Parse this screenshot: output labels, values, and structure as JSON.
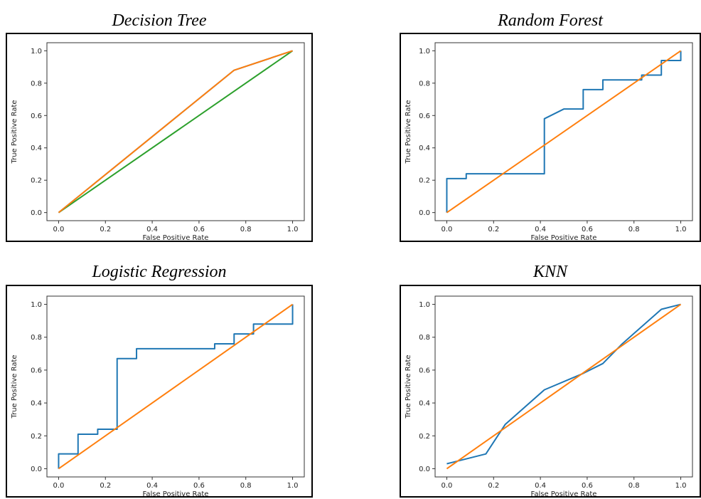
{
  "chart_data": [
    {
      "type": "line",
      "title": "Decision Tree",
      "xlabel": "False Positive Rate",
      "ylabel": "True Positive Rate",
      "xlim": [
        -0.05,
        1.05
      ],
      "ylim": [
        -0.05,
        1.05
      ],
      "xticks": [
        "0.0",
        "0.2",
        "0.4",
        "0.6",
        "0.8",
        "1.0"
      ],
      "yticks": [
        "0.0",
        "0.2",
        "0.4",
        "0.6",
        "0.8",
        "1.0"
      ],
      "grid": false,
      "series": [
        {
          "color": "#2ca02c",
          "x": [
            0,
            1
          ],
          "y": [
            0,
            1
          ]
        },
        {
          "color": "#1f77b4",
          "x": [
            0,
            0.75,
            1
          ],
          "y": [
            0,
            0.88,
            1
          ]
        },
        {
          "color": "#ff7f0e",
          "x": [
            0,
            0.75,
            1
          ],
          "y": [
            0,
            0.88,
            1
          ]
        }
      ]
    },
    {
      "type": "line",
      "title": "Random Forest",
      "xlabel": "False Positive Rate",
      "ylabel": "True Positive Rate",
      "xlim": [
        -0.05,
        1.05
      ],
      "ylim": [
        -0.05,
        1.05
      ],
      "xticks": [
        "0.0",
        "0.2",
        "0.4",
        "0.6",
        "0.8",
        "1.0"
      ],
      "yticks": [
        "0.0",
        "0.2",
        "0.4",
        "0.6",
        "0.8",
        "1.0"
      ],
      "grid": false,
      "series": [
        {
          "color": "#1f77b4",
          "x": [
            0,
            0,
            0.083,
            0.083,
            0.417,
            0.417,
            0.5,
            0.583,
            0.583,
            0.667,
            0.667,
            0.833,
            0.833,
            0.917,
            0.917,
            1,
            1
          ],
          "y": [
            0,
            0.21,
            0.21,
            0.24,
            0.24,
            0.58,
            0.64,
            0.64,
            0.76,
            0.76,
            0.82,
            0.82,
            0.85,
            0.85,
            0.94,
            0.94,
            1
          ]
        },
        {
          "color": "#ff7f0e",
          "x": [
            0,
            1
          ],
          "y": [
            0,
            1
          ]
        }
      ]
    },
    {
      "type": "line",
      "title": "Logistic Regression",
      "xlabel": "False Positive Rate",
      "ylabel": "True Positive Rate",
      "xlim": [
        -0.05,
        1.05
      ],
      "ylim": [
        -0.05,
        1.05
      ],
      "xticks": [
        "0.0",
        "0.2",
        "0.4",
        "0.6",
        "0.8",
        "1.0"
      ],
      "yticks": [
        "0.0",
        "0.2",
        "0.4",
        "0.6",
        "0.8",
        "1.0"
      ],
      "grid": false,
      "series": [
        {
          "color": "#1f77b4",
          "x": [
            0,
            0,
            0.083,
            0.083,
            0.167,
            0.167,
            0.25,
            0.25,
            0.333,
            0.333,
            0.667,
            0.667,
            0.75,
            0.75,
            0.833,
            0.833,
            1,
            1
          ],
          "y": [
            0,
            0.09,
            0.09,
            0.21,
            0.21,
            0.24,
            0.24,
            0.67,
            0.67,
            0.73,
            0.73,
            0.76,
            0.76,
            0.82,
            0.82,
            0.88,
            0.88,
            1
          ]
        },
        {
          "color": "#ff7f0e",
          "x": [
            0,
            1
          ],
          "y": [
            0,
            1
          ]
        }
      ]
    },
    {
      "type": "line",
      "title": "KNN",
      "xlabel": "False Positive Rate",
      "ylabel": "True Positive Rate",
      "xlim": [
        -0.05,
        1.05
      ],
      "ylim": [
        -0.05,
        1.05
      ],
      "xticks": [
        "0.0",
        "0.2",
        "0.4",
        "0.6",
        "0.8",
        "1.0"
      ],
      "yticks": [
        "0.0",
        "0.2",
        "0.4",
        "0.6",
        "0.8",
        "1.0"
      ],
      "grid": false,
      "series": [
        {
          "color": "#1f77b4",
          "x": [
            0,
            0.167,
            0.25,
            0.417,
            0.583,
            0.667,
            0.75,
            0.917,
            1
          ],
          "y": [
            0.03,
            0.09,
            0.27,
            0.48,
            0.58,
            0.64,
            0.76,
            0.97,
            1
          ]
        },
        {
          "color": "#ff7f0e",
          "x": [
            0,
            1
          ],
          "y": [
            0,
            1
          ]
        }
      ]
    }
  ]
}
